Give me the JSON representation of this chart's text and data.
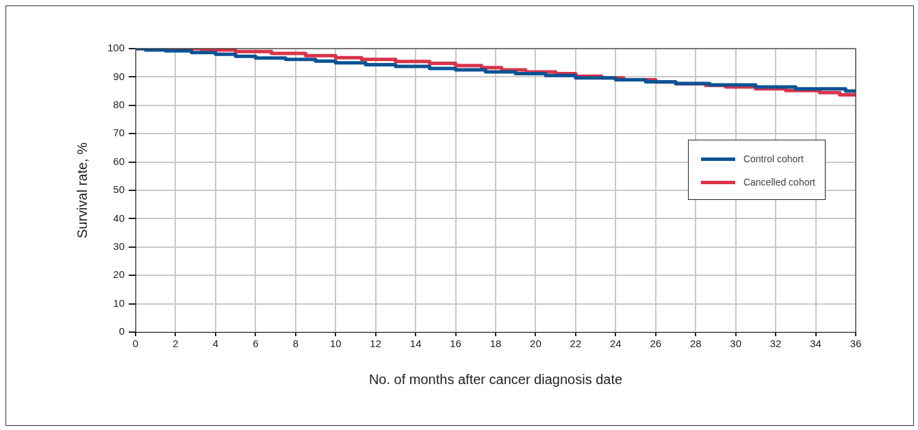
{
  "chart_data": {
    "type": "step",
    "xlabel": "No. of months after cancer diagnosis date",
    "ylabel": "Survival rate, %",
    "xlim": [
      0,
      36
    ],
    "xticks": [
      0,
      2,
      4,
      6,
      8,
      10,
      12,
      14,
      16,
      18,
      20,
      22,
      24,
      26,
      28,
      30,
      32,
      34,
      36
    ],
    "ylim": [
      0,
      100
    ],
    "yticks": [
      0,
      10,
      20,
      30,
      40,
      50,
      60,
      70,
      80,
      90,
      100
    ],
    "grid": true,
    "legend": "right",
    "marker": "none",
    "line_style": "solid",
    "series": [
      {
        "name": "Control cohort",
        "color": "#0b5394",
        "x": [
          0,
          0.5,
          1.5,
          2.8,
          4,
          5,
          6,
          7.5,
          9,
          10,
          11.5,
          13,
          14.7,
          16,
          17.5,
          19,
          20.5,
          22,
          24,
          25.5,
          27,
          28.7,
          31,
          33,
          35.5,
          36
        ],
        "values": [
          100,
          99.5,
          99.2,
          98.6,
          98,
          97.3,
          96.7,
          96.2,
          95.6,
          95,
          94.3,
          93.7,
          93,
          92.5,
          91.8,
          91.2,
          90.5,
          89.7,
          89,
          88.3,
          87.7,
          87.2,
          86.5,
          85.8,
          85,
          85
        ]
      },
      {
        "name": "Cancelled cohort",
        "color": "#d9344a",
        "x": [
          0,
          3.3,
          5,
          6.8,
          8.5,
          10,
          11.3,
          13,
          14.7,
          16,
          17.3,
          18.3,
          19.5,
          21,
          22,
          23.3,
          24.4,
          26,
          27,
          28.5,
          29.5,
          31,
          32.5,
          34.2,
          35.2,
          36
        ],
        "values": [
          100,
          99.5,
          99,
          98.3,
          97.5,
          96.8,
          96.2,
          95.5,
          94.8,
          94,
          93.3,
          92.5,
          91.8,
          91.2,
          90.3,
          89.7,
          89,
          88.2,
          87.6,
          87,
          86.5,
          85.8,
          85.2,
          84.5,
          83.7,
          83.7
        ]
      }
    ]
  }
}
